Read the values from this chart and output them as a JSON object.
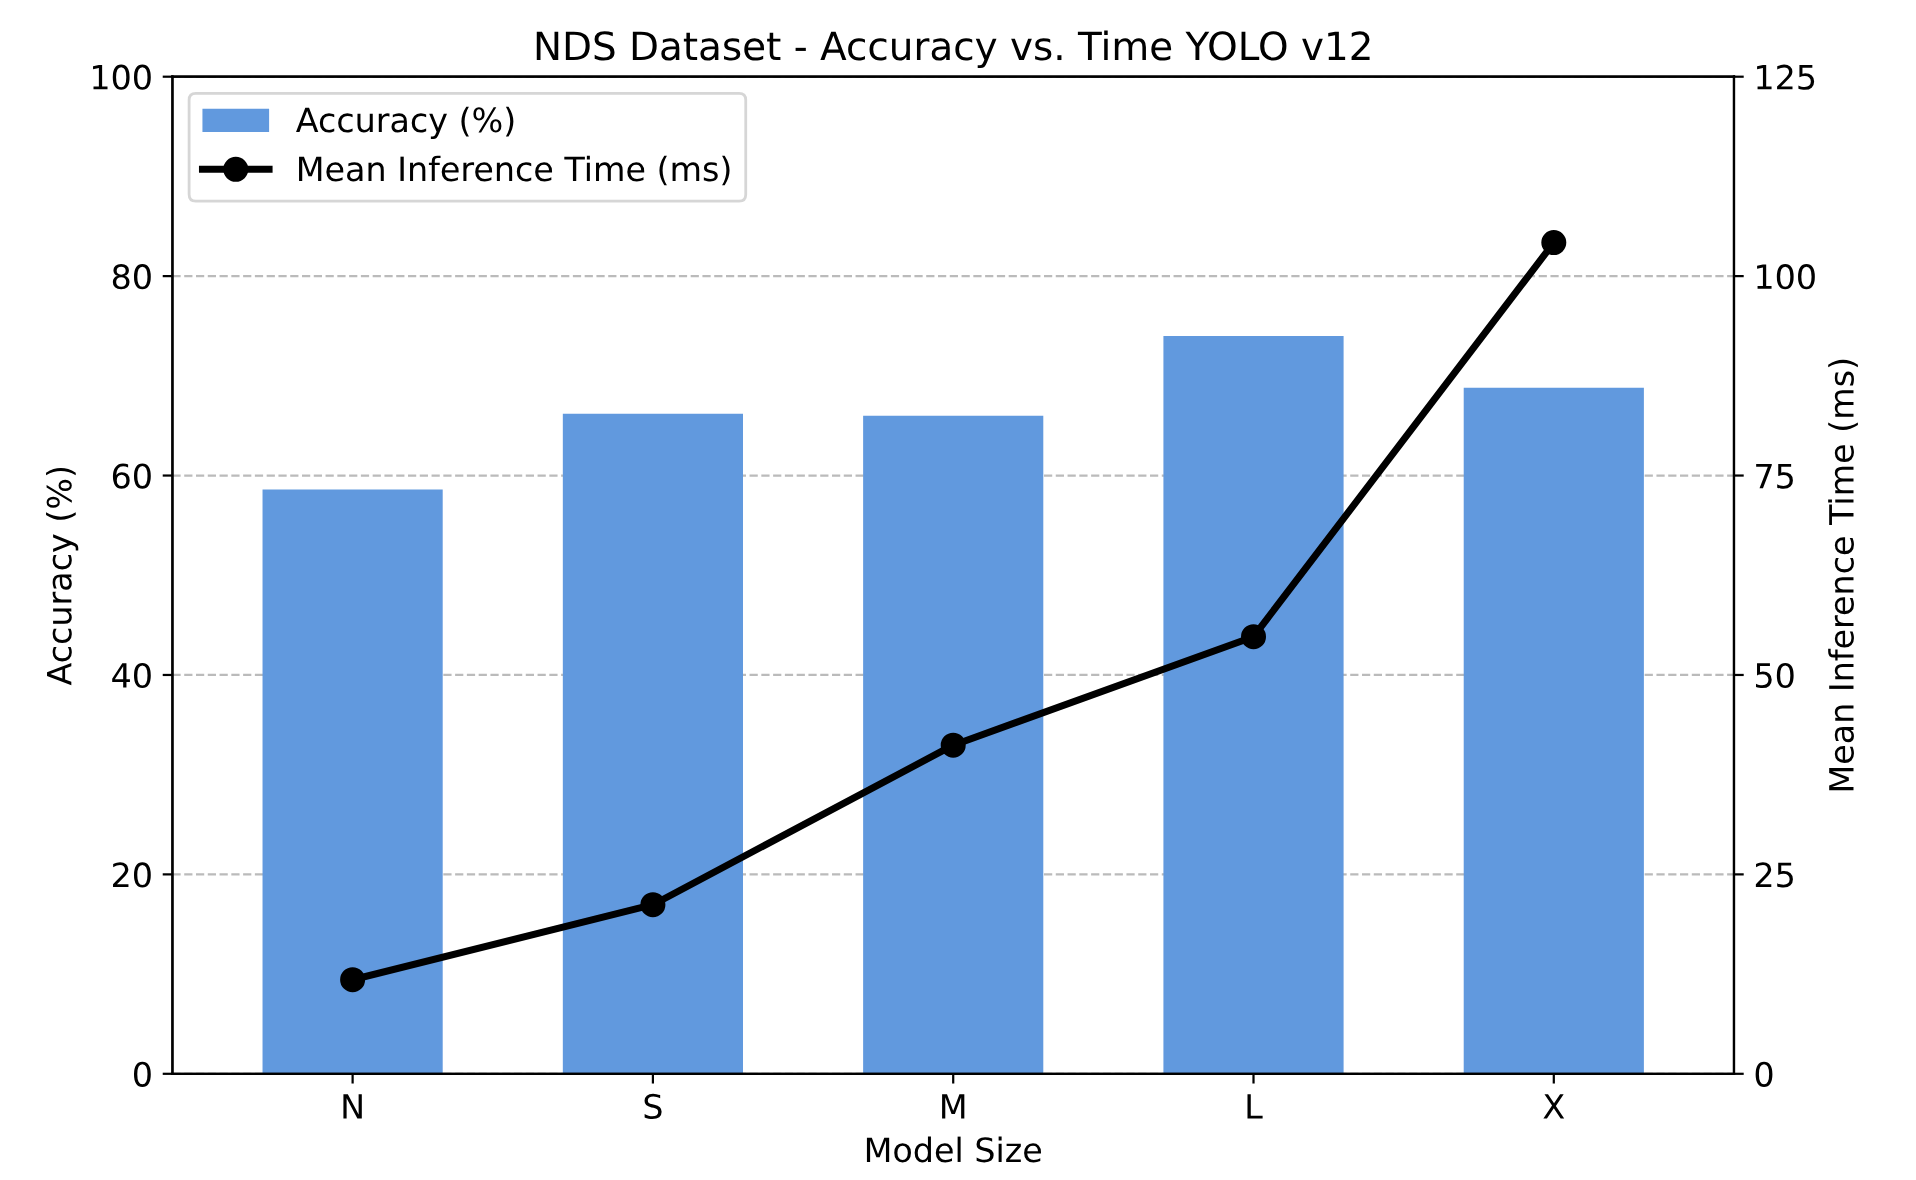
{
  "chart_data": {
    "type": "bar",
    "title": "NDS Dataset - Accuracy vs. Time YOLO v12",
    "xlabel": "Model Size",
    "ylabel": "Accuracy (%)",
    "y2label": "Mean Inference Time (ms)",
    "categories": [
      "N",
      "S",
      "M",
      "L",
      "X"
    ],
    "series": [
      {
        "name": "Accuracy (%)",
        "color": "#6199de",
        "values": [
          58.6,
          66.2,
          66.0,
          74.0,
          68.8
        ]
      },
      {
        "name": "Mean Inference Time (ms)",
        "type": "line",
        "axis": "y2",
        "color": "#000000",
        "marker": "circle",
        "line_style": "solid",
        "values": [
          11.8,
          21.2,
          41.2,
          54.8,
          104.2
        ]
      }
    ],
    "ylim": [
      0,
      100
    ],
    "yticks": [
      0,
      20,
      40,
      60,
      80,
      100
    ],
    "y2lim": [
      0,
      125
    ],
    "y2ticks": [
      0,
      25,
      50,
      75,
      100,
      125
    ],
    "grid": "y",
    "legend": "top left"
  }
}
